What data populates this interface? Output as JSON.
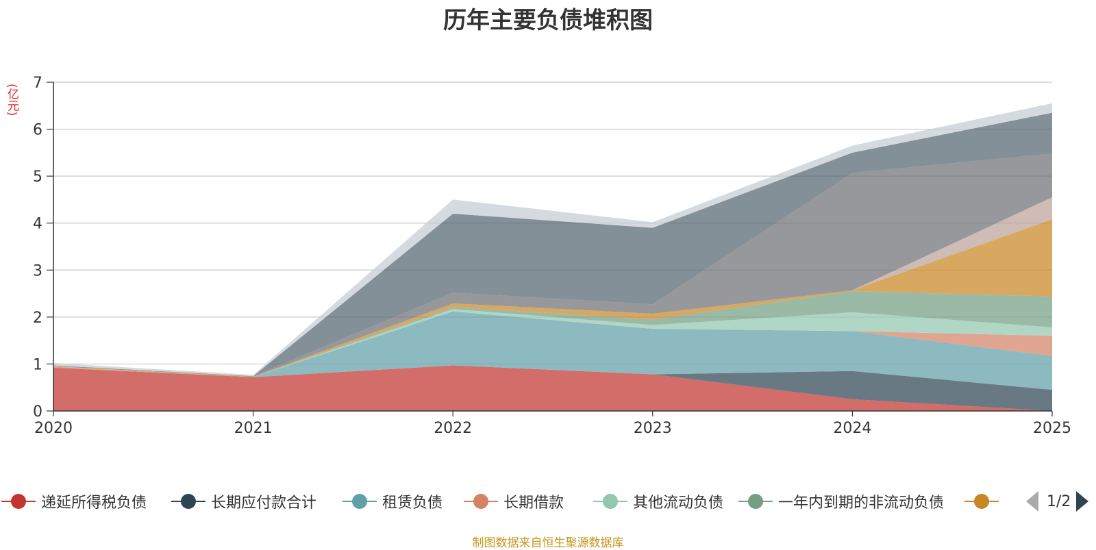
{
  "chart_data": {
    "type": "area",
    "stacked": true,
    "title": "历年主要负债堆积图",
    "ylabel": "(亿元)",
    "xlabel": "",
    "ylim": [
      0,
      7
    ],
    "yticks": [
      0,
      1,
      2,
      3,
      4,
      5,
      6,
      7
    ],
    "categories": [
      "2020",
      "2021",
      "2022",
      "2023",
      "2024",
      "2025"
    ],
    "grid": true,
    "series": [
      {
        "name": "递延所得税负债",
        "color": "#c23531",
        "values": [
          0.92,
          0.72,
          0.97,
          0.78,
          0.25,
          0.0
        ]
      },
      {
        "name": "长期应付款合计",
        "color": "#2f4554",
        "values": [
          0.0,
          0.0,
          0.0,
          0.0,
          0.6,
          0.45
        ]
      },
      {
        "name": "租赁负债",
        "color": "#61a0a8",
        "values": [
          0.0,
          0.0,
          1.15,
          0.97,
          0.85,
          0.72
        ]
      },
      {
        "name": "长期借款",
        "color": "#d48265",
        "values": [
          0.0,
          0.0,
          0.0,
          0.0,
          0.0,
          0.43
        ]
      },
      {
        "name": "其他流动负债",
        "color": "#91c7ae",
        "values": [
          0.0,
          0.0,
          0.05,
          0.08,
          0.4,
          0.18
        ]
      },
      {
        "name": "一年内到期的非流动负债",
        "color": "#749f83",
        "values": [
          0.0,
          0.0,
          0.04,
          0.12,
          0.45,
          0.66
        ]
      },
      {
        "name": "",
        "color": "#ca8622",
        "values": [
          0.02,
          0.01,
          0.08,
          0.12,
          0.02,
          1.64
        ]
      },
      {
        "name": "",
        "color": "#bda29a",
        "values": [
          0.01,
          0.0,
          0.0,
          0.0,
          0.0,
          0.47
        ]
      },
      {
        "name": "",
        "color": "#6e7074",
        "values": [
          0.02,
          0.01,
          0.23,
          0.2,
          2.5,
          0.93
        ]
      },
      {
        "name": "",
        "color": "#546570",
        "values": [
          0.0,
          0.0,
          1.68,
          1.63,
          0.43,
          0.87
        ]
      },
      {
        "name": "",
        "color": "#c4ccd3",
        "values": [
          0.05,
          0.03,
          0.3,
          0.12,
          0.15,
          0.2
        ]
      }
    ]
  },
  "legend": {
    "page_text": "1/2"
  },
  "footer": {
    "source": "制图数据来自恒生聚源数据库"
  }
}
